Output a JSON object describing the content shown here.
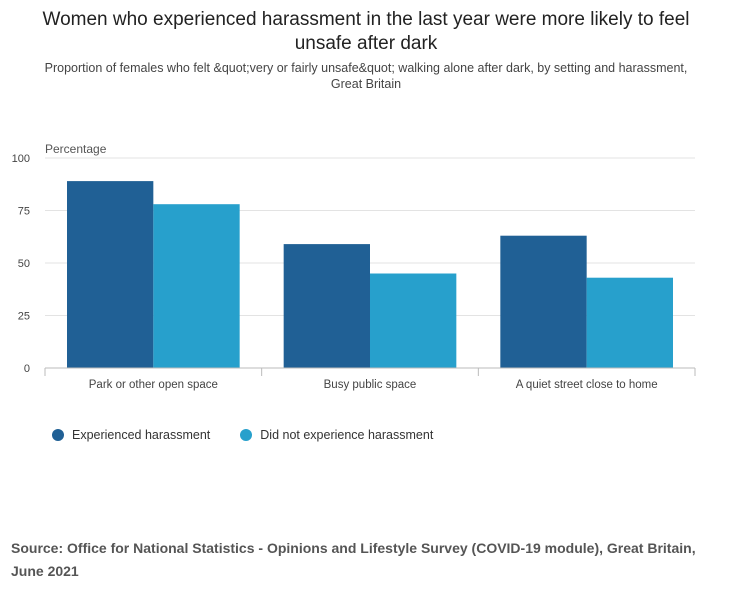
{
  "chart_data": {
    "type": "bar",
    "title": "Women who experienced harassment in the last year were more likely to feel unsafe after dark",
    "subtitle": "Proportion of females who felt &quot;very or fairly unsafe&quot; walking alone after dark, by setting and harassment, Great Britain",
    "ylabel": "Percentage",
    "xlabel": "",
    "ylim": [
      0,
      100
    ],
    "yticks": [
      0,
      25,
      50,
      75,
      100
    ],
    "grid": true,
    "legend_position": "bottom-left",
    "categories": [
      "Park or other open space",
      "Busy public space",
      "A quiet street close to home"
    ],
    "series": [
      {
        "name": "Experienced harassment",
        "color": "#206095",
        "values": [
          89,
          59,
          63
        ]
      },
      {
        "name": "Did not experience harassment",
        "color": "#27a0cc",
        "values": [
          78,
          45,
          43
        ]
      }
    ]
  },
  "source": "Source: Office for National Statistics - Opinions and Lifestyle Survey (COVID-19 module), Great Britain, June 2021"
}
